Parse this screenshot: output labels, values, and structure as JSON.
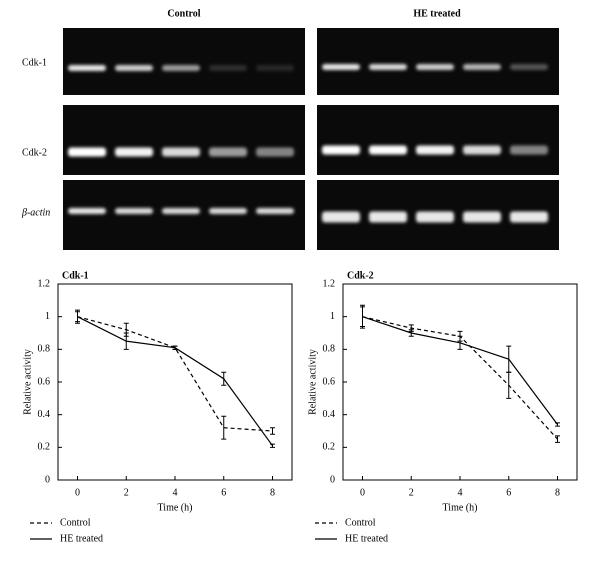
{
  "gel": {
    "columns": [
      "Control",
      "HE treated"
    ],
    "rows": [
      "Cdk-1",
      "Cdk-2",
      "β-actin"
    ]
  },
  "chart_data": [
    {
      "type": "line",
      "title": "Cdk-1",
      "x_label": "Time (h)",
      "y_label": "Relative activity",
      "x": [
        0,
        2,
        4,
        6,
        8
      ],
      "xlim": [
        -0.8,
        8.8
      ],
      "xticks": [
        0,
        2,
        4,
        6,
        8
      ],
      "ylim": [
        0,
        1.2
      ],
      "yticks": [
        0,
        0.2,
        0.4,
        0.6,
        0.8,
        1,
        1.2
      ],
      "series": [
        {
          "name": "Control",
          "color": "#000000",
          "dash": "dashed",
          "values": [
            1,
            0.92,
            0.81,
            0.32,
            0.3
          ],
          "errors": [
            0.03,
            0.04,
            0.01,
            0.07,
            0.02
          ]
        },
        {
          "name": "HE treated",
          "color": "#000000",
          "dash": "solid",
          "values": [
            1,
            0.85,
            0.81,
            0.62,
            0.21
          ],
          "errors": [
            0.04,
            0.05,
            0.01,
            0.04,
            0.01
          ]
        }
      ]
    },
    {
      "type": "line",
      "title": "Cdk-2",
      "x_label": "Time (h)",
      "y_label": "Relative activity",
      "x": [
        0,
        2,
        4,
        6,
        8
      ],
      "xlim": [
        -0.8,
        8.8
      ],
      "xticks": [
        0,
        2,
        4,
        6,
        8
      ],
      "ylim": [
        0,
        1.2
      ],
      "yticks": [
        0,
        0.2,
        0.4,
        0.6,
        0.8,
        1,
        1.2
      ],
      "series": [
        {
          "name": "Control",
          "color": "#000000",
          "dash": "dashed",
          "values": [
            1,
            0.93,
            0.88,
            0.58,
            0.25
          ],
          "errors": [
            0.07,
            0.02,
            0.03,
            0.08,
            0.02
          ]
        },
        {
          "name": "HE treated",
          "color": "#000000",
          "dash": "solid",
          "values": [
            1,
            0.9,
            0.84,
            0.74,
            0.34
          ],
          "errors": [
            0.06,
            0.02,
            0.04,
            0.08,
            0.01
          ]
        }
      ]
    }
  ]
}
